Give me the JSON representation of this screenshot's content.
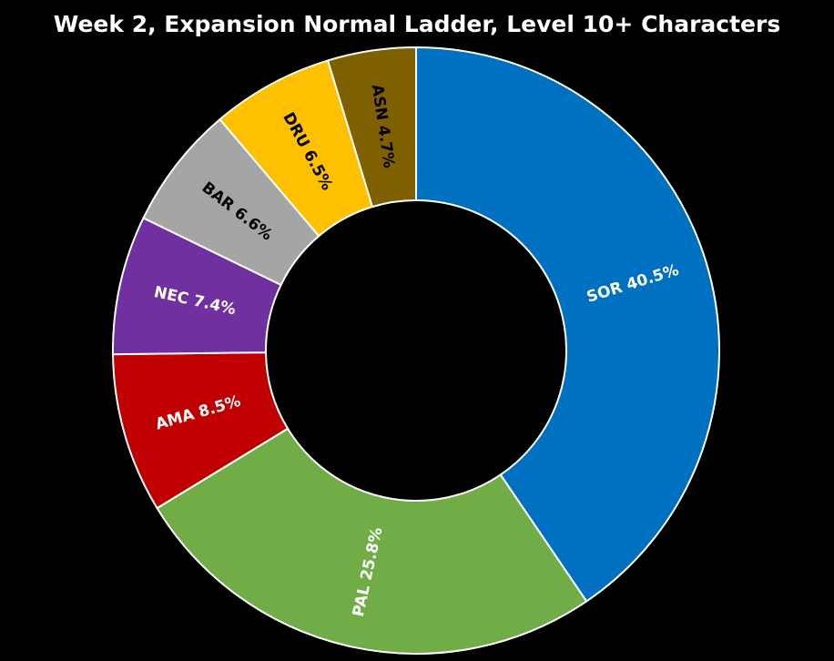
{
  "chart_data": {
    "type": "pie",
    "title": "Week 2, Expansion Normal Ladder, Level 10+ Characters",
    "categories": [
      "SOR",
      "PAL",
      "AMA",
      "NEC",
      "BAR",
      "DRU",
      "ASN"
    ],
    "values": [
      40.5,
      25.8,
      8.5,
      7.4,
      6.6,
      6.5,
      4.7
    ],
    "value_labels": [
      "SOR 40.5%",
      "PAL 25.8%",
      "AMA 8.5%",
      "NEC 7.4%",
      "BAR 6.6%",
      "DRU 6.5%",
      "ASN 4.7%"
    ],
    "colors": [
      "#0070c0",
      "#70ad47",
      "#c00000",
      "#7030a0",
      "#a5a5a5",
      "#ffc000",
      "#7f6000"
    ]
  }
}
